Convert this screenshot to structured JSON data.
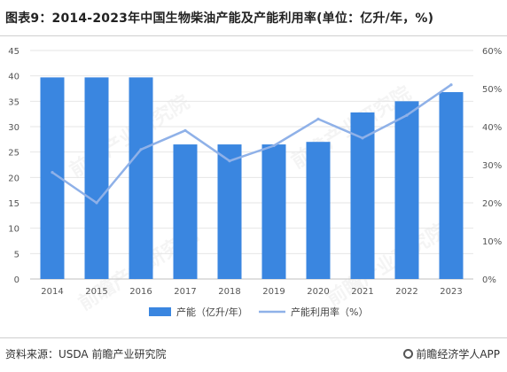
{
  "title": "图表9：2014-2023年中国生物柴油产能及产能利用率(单位：亿升/年，%)",
  "source": "资料来源：USDA 前瞻产业研究院",
  "brand": "前瞻经济学人APP",
  "watermark": "前瞻产业研究院",
  "colors": {
    "bar": "#3a86e0",
    "line": "#8fb1e8",
    "grid": "#e6e6e6",
    "axis_text": "#555555"
  },
  "chart_data": {
    "type": "bar",
    "categories": [
      "2014",
      "2015",
      "2016",
      "2017",
      "2018",
      "2019",
      "2020",
      "2021",
      "2022",
      "2023"
    ],
    "series": [
      {
        "name": "产能（亿升/年）",
        "type": "bar",
        "axis": "left",
        "values": [
          39.7,
          39.7,
          39.7,
          26.5,
          26.5,
          26.5,
          27,
          32.8,
          35,
          36.8
        ]
      },
      {
        "name": "产能利用率（%）",
        "type": "line",
        "axis": "right",
        "values": [
          28,
          20,
          34,
          39,
          31,
          35,
          42,
          37,
          43,
          51
        ]
      }
    ],
    "y_left": {
      "min": 0,
      "max": 45,
      "step": 5,
      "ticks": [
        "0",
        "5",
        "10",
        "15",
        "20",
        "25",
        "30",
        "35",
        "40",
        "45"
      ]
    },
    "y_right": {
      "min": 0,
      "max": 60,
      "step": 10,
      "ticks": [
        "0%",
        "10%",
        "20%",
        "30%",
        "40%",
        "50%",
        "60%"
      ]
    },
    "grid": true,
    "legend_position": "bottom"
  }
}
